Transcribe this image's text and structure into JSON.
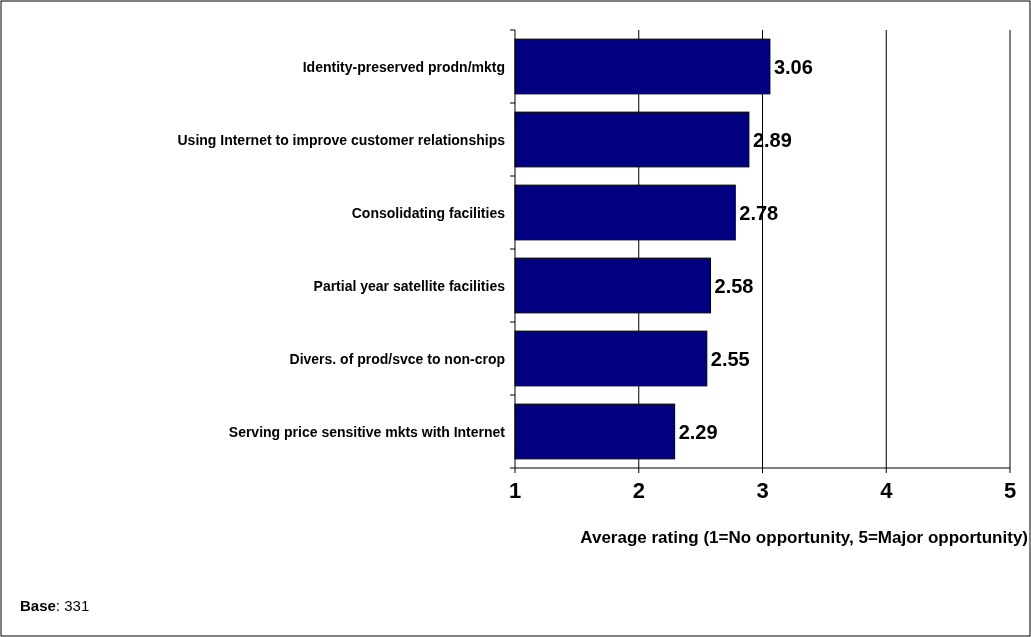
{
  "chart_data": {
    "type": "bar",
    "orientation": "horizontal",
    "categories": [
      "Identity-preserved prodn/mktg",
      "Using Internet to improve customer relationships",
      "Consolidating facilities",
      "Partial year satellite facilities",
      "Divers. of prod/svce to non-crop",
      "Serving price sensitive mkts with Internet"
    ],
    "values": [
      3.06,
      2.89,
      2.78,
      2.58,
      2.55,
      2.29
    ],
    "color": "#000080",
    "xlim": [
      1,
      5
    ],
    "xticks": [
      1,
      2,
      3,
      4,
      5
    ],
    "grid": "x",
    "data_labels": true,
    "xlabel": "Average rating (1=No opportunity, 5=Major opportunity)",
    "annotations": [
      "Base: 331"
    ]
  }
}
